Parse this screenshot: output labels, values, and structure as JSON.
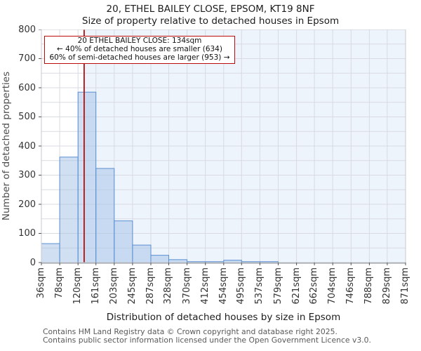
{
  "page": {
    "title_line1": "20, ETHEL BAILEY CLOSE, EPSOM, KT19 8NF",
    "title_line2": "Size of property relative to detached houses in Epsom"
  },
  "annotation": {
    "line1": "20 ETHEL BAILEY CLOSE: 134sqm",
    "line2": "← 40% of detached houses are smaller (634)",
    "line3": "60% of semi-detached houses are larger (953) →"
  },
  "chart_data": {
    "type": "bar",
    "title": "20, ETHEL BAILEY CLOSE, EPSOM, KT19 8NF",
    "subtitle": "Size of property relative to detached houses in Epsom",
    "xlabel": "Distribution of detached houses by size in Epsom",
    "ylabel": "Number of detached properties",
    "ylim": [
      0,
      800
    ],
    "ytick_step": 100,
    "grid_step": 50,
    "grid": true,
    "bin_edges_sqm": [
      36,
      78,
      120,
      161,
      203,
      245,
      287,
      328,
      370,
      412,
      454,
      495,
      537,
      579,
      621,
      662,
      704,
      746,
      788,
      829,
      871
    ],
    "x_tick_labels": [
      "36sqm",
      "78sqm",
      "120sqm",
      "161sqm",
      "203sqm",
      "245sqm",
      "287sqm",
      "328sqm",
      "370sqm",
      "412sqm",
      "454sqm",
      "495sqm",
      "537sqm",
      "579sqm",
      "621sqm",
      "662sqm",
      "704sqm",
      "746sqm",
      "788sqm",
      "829sqm",
      "871sqm"
    ],
    "values": [
      65,
      362,
      585,
      323,
      143,
      60,
      25,
      10,
      3,
      3,
      8,
      3,
      3,
      0,
      0,
      0,
      0,
      0,
      0,
      0
    ],
    "marker_sqm": 134
  },
  "colors": {
    "bar_fill": "#a9c4e8",
    "bar_border": "#5b8fd1",
    "marker_line": "#b40f0f",
    "annotation_border": "#bb0b0b",
    "shade_right_of_marker": "#eef4fc",
    "gridline": "#d8dbe1",
    "frame": "#c6cad0",
    "axis_spine": "#aaaeb5",
    "tick": "#555555"
  },
  "footer": {
    "line1": "Contains HM Land Registry data © Crown copyright and database right 2025.",
    "line2": "Contains public sector information licensed under the Open Government Licence v3.0."
  }
}
